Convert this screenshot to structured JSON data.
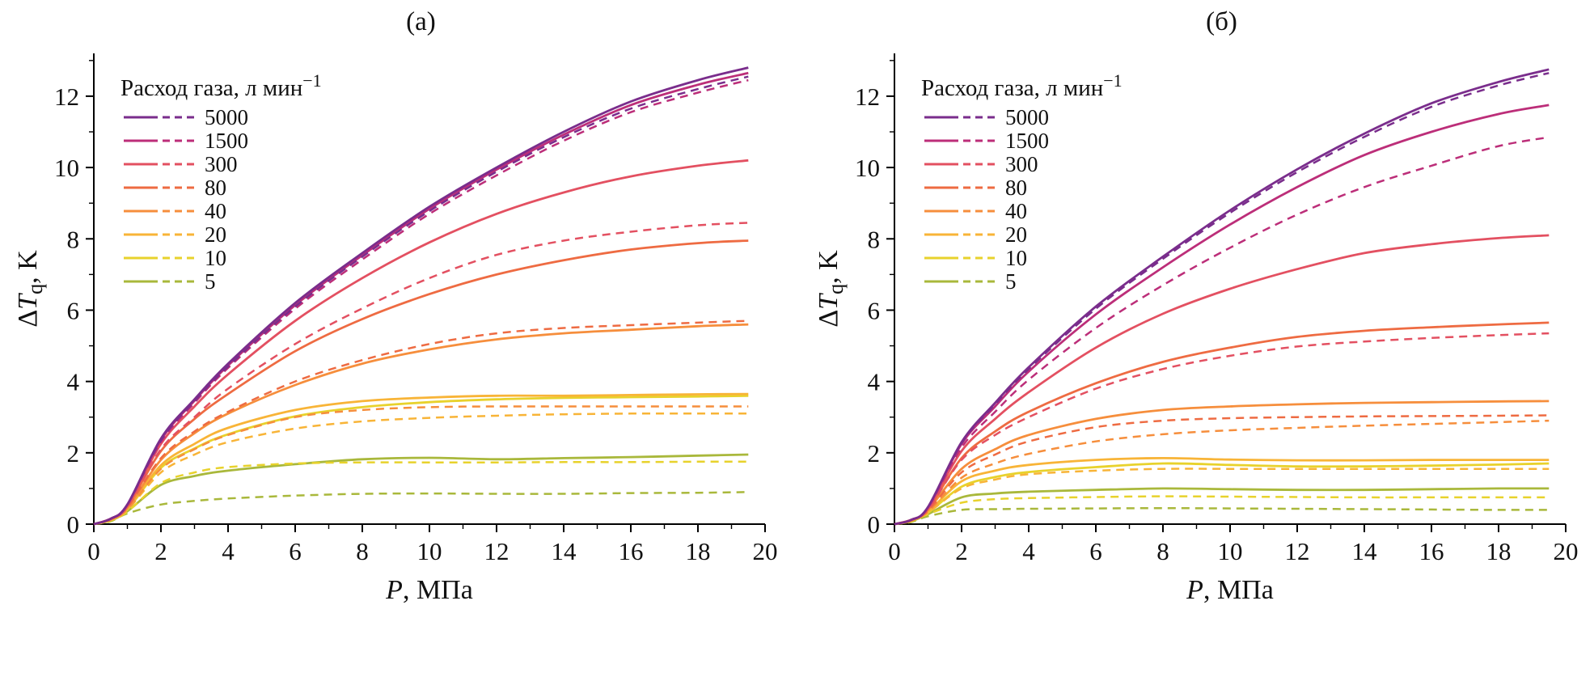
{
  "figure": {
    "panels": [
      {
        "title": "(а)"
      },
      {
        "title": "(б)"
      }
    ]
  },
  "chart_data": [
    {
      "type": "line",
      "title": "(а)",
      "xlabel": {
        "var": "P",
        "post": ", МПа"
      },
      "ylabel": {
        "pre": "Δ",
        "var": "T",
        "sub": "q",
        "post": ", K"
      },
      "legend_title": {
        "text": "Расход газа, л мин",
        "sup": "−1"
      },
      "legend_position": "top-left",
      "xlim": [
        0,
        20
      ],
      "ylim": [
        0,
        13.2
      ],
      "xticks": [
        0,
        2,
        4,
        6,
        8,
        10,
        12,
        14,
        16,
        18,
        20
      ],
      "yticks": [
        0,
        2,
        4,
        6,
        8,
        10,
        12
      ],
      "grid": false,
      "flows": [
        "5000",
        "1500",
        "300",
        "80",
        "40",
        "20",
        "10",
        "5"
      ],
      "colors": {
        "5000": "#7a2d8c",
        "1500": "#bc2e79",
        "300": "#e35061",
        "80": "#ee6b42",
        "40": "#f68e3c",
        "20": "#f8b437",
        "10": "#e8d22c",
        "5": "#a9b83b"
      },
      "x": [
        0,
        0.5,
        1,
        2,
        3,
        4,
        6,
        8,
        10,
        12,
        14,
        16,
        18,
        19.5
      ],
      "series": [
        {
          "name": "5000",
          "style": "solid",
          "values": [
            0,
            0.15,
            0.55,
            2.4,
            3.5,
            4.5,
            6.2,
            7.6,
            8.9,
            10.0,
            11.0,
            11.85,
            12.45,
            12.8
          ]
        },
        {
          "name": "5000",
          "style": "dashed",
          "values": [
            0,
            0.15,
            0.55,
            2.35,
            3.45,
            4.42,
            6.1,
            7.5,
            8.78,
            9.88,
            10.85,
            11.65,
            12.2,
            12.55
          ]
        },
        {
          "name": "1500",
          "style": "solid",
          "values": [
            0,
            0.15,
            0.55,
            2.36,
            3.46,
            4.45,
            6.14,
            7.54,
            8.84,
            9.94,
            10.92,
            11.75,
            12.32,
            12.65
          ]
        },
        {
          "name": "1500",
          "style": "dashed",
          "values": [
            0,
            0.15,
            0.55,
            2.3,
            3.4,
            4.38,
            6.04,
            7.42,
            8.7,
            9.78,
            10.75,
            11.55,
            12.1,
            12.45
          ]
        },
        {
          "name": "300",
          "style": "solid",
          "values": [
            0,
            0.15,
            0.52,
            2.25,
            3.3,
            4.2,
            5.7,
            6.9,
            7.9,
            8.7,
            9.3,
            9.75,
            10.05,
            10.2
          ]
        },
        {
          "name": "300",
          "style": "dashed",
          "values": [
            0,
            0.15,
            0.5,
            2.1,
            3.0,
            3.8,
            5.05,
            6.05,
            6.9,
            7.55,
            7.95,
            8.2,
            8.38,
            8.45
          ]
        },
        {
          "name": "80",
          "style": "solid",
          "values": [
            0,
            0.15,
            0.5,
            2.05,
            2.95,
            3.65,
            4.85,
            5.75,
            6.45,
            7.0,
            7.4,
            7.7,
            7.88,
            7.95
          ]
        },
        {
          "name": "80",
          "style": "dashed",
          "values": [
            0,
            0.14,
            0.47,
            1.85,
            2.6,
            3.15,
            4.0,
            4.6,
            5.05,
            5.35,
            5.5,
            5.58,
            5.65,
            5.7
          ]
        },
        {
          "name": "40",
          "style": "solid",
          "values": [
            0,
            0.14,
            0.46,
            1.8,
            2.55,
            3.1,
            3.9,
            4.5,
            4.9,
            5.18,
            5.35,
            5.45,
            5.55,
            5.6
          ]
        },
        {
          "name": "40",
          "style": "dashed",
          "values": [
            0,
            0.12,
            0.42,
            1.55,
            2.1,
            2.5,
            3.0,
            3.2,
            3.28,
            3.3,
            3.3,
            3.3,
            3.3,
            3.3
          ]
        },
        {
          "name": "20",
          "style": "solid",
          "values": [
            0,
            0.12,
            0.43,
            1.65,
            2.25,
            2.7,
            3.2,
            3.45,
            3.55,
            3.6,
            3.6,
            3.62,
            3.64,
            3.65
          ]
        },
        {
          "name": "20",
          "style": "dashed",
          "values": [
            0,
            0.12,
            0.4,
            1.45,
            1.95,
            2.3,
            2.68,
            2.88,
            2.98,
            3.04,
            3.08,
            3.1,
            3.1,
            3.1
          ]
        },
        {
          "name": "10",
          "style": "solid",
          "values": [
            0,
            0.12,
            0.41,
            1.58,
            2.12,
            2.52,
            3.02,
            3.28,
            3.42,
            3.5,
            3.54,
            3.56,
            3.58,
            3.6
          ]
        },
        {
          "name": "10",
          "style": "dashed",
          "values": [
            0,
            0.1,
            0.35,
            1.15,
            1.45,
            1.6,
            1.7,
            1.73,
            1.73,
            1.73,
            1.74,
            1.74,
            1.75,
            1.75
          ]
        },
        {
          "name": "5",
          "style": "solid",
          "values": [
            0,
            0.1,
            0.36,
            1.1,
            1.35,
            1.5,
            1.68,
            1.82,
            1.86,
            1.82,
            1.85,
            1.88,
            1.92,
            1.95
          ]
        },
        {
          "name": "5",
          "style": "dashed",
          "values": [
            0,
            0.08,
            0.3,
            0.55,
            0.65,
            0.72,
            0.8,
            0.85,
            0.86,
            0.85,
            0.85,
            0.87,
            0.88,
            0.9
          ]
        }
      ]
    },
    {
      "type": "line",
      "title": "(б)",
      "xlabel": {
        "var": "P",
        "post": ", МПа"
      },
      "ylabel": {
        "pre": "Δ",
        "var": "T",
        "sub": "q",
        "post": ", K"
      },
      "legend_title": {
        "text": "Расход газа, л мин",
        "sup": "−1"
      },
      "legend_position": "top-left",
      "xlim": [
        0,
        20
      ],
      "ylim": [
        0,
        13.2
      ],
      "xticks": [
        0,
        2,
        4,
        6,
        8,
        10,
        12,
        14,
        16,
        18,
        20
      ],
      "yticks": [
        0,
        2,
        4,
        6,
        8,
        10,
        12
      ],
      "grid": false,
      "flows": [
        "5000",
        "1500",
        "300",
        "80",
        "40",
        "20",
        "10",
        "5"
      ],
      "colors": {
        "5000": "#7a2d8c",
        "1500": "#bc2e79",
        "300": "#e35061",
        "80": "#ee6b42",
        "40": "#f68e3c",
        "20": "#f8b437",
        "10": "#e8d22c",
        "5": "#a9b83b"
      },
      "x": [
        0,
        0.5,
        1,
        2,
        3,
        4,
        6,
        8,
        10,
        12,
        14,
        16,
        18,
        19.5
      ],
      "series": [
        {
          "name": "5000",
          "style": "solid",
          "values": [
            0,
            0.12,
            0.48,
            2.3,
            3.4,
            4.4,
            6.1,
            7.5,
            8.8,
            9.95,
            10.95,
            11.8,
            12.4,
            12.75
          ]
        },
        {
          "name": "5000",
          "style": "dashed",
          "values": [
            0,
            0.12,
            0.48,
            2.27,
            3.36,
            4.35,
            6.04,
            7.44,
            8.73,
            9.87,
            10.86,
            11.7,
            12.3,
            12.65
          ]
        },
        {
          "name": "1500",
          "style": "solid",
          "values": [
            0,
            0.12,
            0.47,
            2.25,
            3.3,
            4.28,
            5.88,
            7.2,
            8.4,
            9.45,
            10.35,
            11.0,
            11.5,
            11.75
          ]
        },
        {
          "name": "1500",
          "style": "dashed",
          "values": [
            0,
            0.12,
            0.46,
            2.15,
            3.15,
            4.05,
            5.5,
            6.7,
            7.75,
            8.68,
            9.45,
            10.05,
            10.6,
            10.85
          ]
        },
        {
          "name": "300",
          "style": "solid",
          "values": [
            0,
            0.12,
            0.45,
            2.05,
            2.95,
            3.7,
            4.95,
            5.9,
            6.6,
            7.15,
            7.6,
            7.85,
            8.02,
            8.1
          ]
        },
        {
          "name": "300",
          "style": "dashed",
          "values": [
            0,
            0.12,
            0.42,
            1.8,
            2.5,
            3.0,
            3.8,
            4.35,
            4.72,
            4.98,
            5.12,
            5.22,
            5.3,
            5.35
          ]
        },
        {
          "name": "80",
          "style": "solid",
          "values": [
            0,
            0.12,
            0.42,
            1.85,
            2.6,
            3.15,
            3.95,
            4.55,
            4.95,
            5.25,
            5.42,
            5.52,
            5.6,
            5.65
          ]
        },
        {
          "name": "80",
          "style": "dashed",
          "values": [
            0,
            0.1,
            0.38,
            1.45,
            1.95,
            2.32,
            2.72,
            2.9,
            2.97,
            3.0,
            3.02,
            3.03,
            3.04,
            3.05
          ]
        },
        {
          "name": "40",
          "style": "solid",
          "values": [
            0,
            0.1,
            0.4,
            1.55,
            2.1,
            2.5,
            2.95,
            3.2,
            3.3,
            3.36,
            3.4,
            3.42,
            3.44,
            3.45
          ]
        },
        {
          "name": "40",
          "style": "dashed",
          "values": [
            0,
            0.1,
            0.35,
            1.3,
            1.7,
            1.97,
            2.32,
            2.52,
            2.63,
            2.7,
            2.76,
            2.81,
            2.86,
            2.9
          ]
        },
        {
          "name": "20",
          "style": "solid",
          "values": [
            0,
            0.1,
            0.35,
            1.2,
            1.5,
            1.66,
            1.8,
            1.85,
            1.81,
            1.79,
            1.79,
            1.8,
            1.8,
            1.8
          ]
        },
        {
          "name": "20",
          "style": "dashed",
          "values": [
            0,
            0.1,
            0.32,
            1.0,
            1.25,
            1.4,
            1.5,
            1.55,
            1.55,
            1.55,
            1.55,
            1.55,
            1.55,
            1.55
          ]
        },
        {
          "name": "10",
          "style": "solid",
          "values": [
            0,
            0.1,
            0.32,
            1.05,
            1.32,
            1.46,
            1.6,
            1.7,
            1.66,
            1.62,
            1.62,
            1.64,
            1.67,
            1.7
          ]
        },
        {
          "name": "10",
          "style": "dashed",
          "values": [
            0,
            0.08,
            0.28,
            0.6,
            0.7,
            0.73,
            0.76,
            0.78,
            0.77,
            0.76,
            0.75,
            0.75,
            0.75,
            0.75
          ]
        },
        {
          "name": "5",
          "style": "solid",
          "values": [
            0,
            0.08,
            0.28,
            0.75,
            0.86,
            0.91,
            0.96,
            1.0,
            0.98,
            0.96,
            0.96,
            0.98,
            1.0,
            1.0
          ]
        },
        {
          "name": "5",
          "style": "dashed",
          "values": [
            0,
            0.06,
            0.22,
            0.4,
            0.42,
            0.43,
            0.44,
            0.45,
            0.44,
            0.43,
            0.42,
            0.41,
            0.4,
            0.4
          ]
        }
      ]
    }
  ]
}
